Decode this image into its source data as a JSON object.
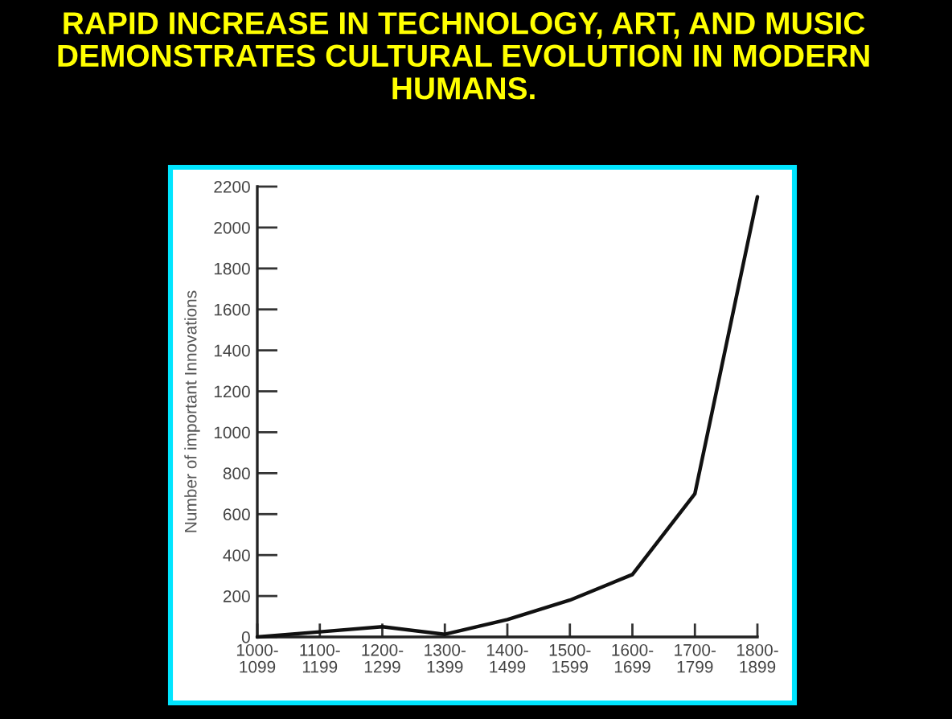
{
  "chart_data": {
    "type": "line",
    "title": "RAPID INCREASE IN TECHNOLOGY, ART, AND MUSIC DEMONSTRATES CULTURAL EVOLUTION IN MODERN HUMANS.",
    "ylabel": "Number of important Innovations",
    "categories": [
      "1000-\n1099",
      "1100-\n1199",
      "1200-\n1299",
      "1300-\n1399",
      "1400-\n1499",
      "1500-\n1599",
      "1600-\n1699",
      "1700-\n1799",
      "1800-\n1899"
    ],
    "values": [
      0,
      25,
      50,
      13,
      85,
      180,
      305,
      700,
      2150
    ],
    "color": "#111111",
    "ylim": [
      0,
      2200
    ],
    "yticks": [
      0,
      200,
      400,
      600,
      800,
      1000,
      1200,
      1400,
      1600,
      1800,
      2000,
      2200
    ]
  }
}
